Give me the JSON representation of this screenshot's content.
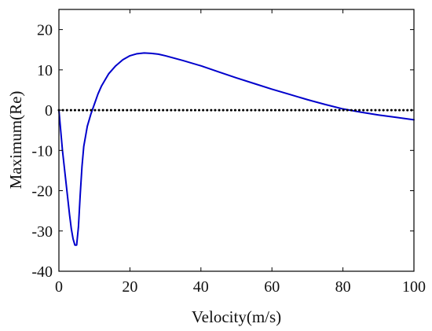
{
  "chart_data": {
    "type": "line",
    "title": "",
    "xlabel": "Velocity(m/s)",
    "ylabel": "Maximum(Re)",
    "xlim": [
      0,
      100
    ],
    "ylim": [
      -40,
      25
    ],
    "xticks": [
      0,
      20,
      40,
      60,
      80,
      100
    ],
    "yticks": [
      -40,
      -30,
      -20,
      -10,
      0,
      10,
      20
    ],
    "grid": false,
    "legend": "none",
    "box": true,
    "series": [
      {
        "style": "solid",
        "color": "#0000cc",
        "points": [
          [
            0,
            0
          ],
          [
            0.5,
            -5
          ],
          [
            1,
            -10
          ],
          [
            1.5,
            -14
          ],
          [
            2,
            -18
          ],
          [
            2.5,
            -22
          ],
          [
            3,
            -26
          ],
          [
            3.5,
            -29.5
          ],
          [
            4,
            -32
          ],
          [
            4.5,
            -33.5
          ],
          [
            5,
            -33.5
          ],
          [
            5.5,
            -29
          ],
          [
            6,
            -21
          ],
          [
            6.5,
            -14
          ],
          [
            7,
            -9
          ],
          [
            8,
            -4
          ],
          [
            9,
            -1
          ],
          [
            10,
            1.5
          ],
          [
            11,
            4
          ],
          [
            12,
            6
          ],
          [
            13,
            7.5
          ],
          [
            14,
            9
          ],
          [
            16,
            11
          ],
          [
            18,
            12.5
          ],
          [
            20,
            13.5
          ],
          [
            22,
            14
          ],
          [
            24,
            14.2
          ],
          [
            26,
            14.1
          ],
          [
            28,
            13.9
          ],
          [
            30,
            13.5
          ],
          [
            35,
            12.3
          ],
          [
            40,
            11.0
          ],
          [
            45,
            9.5
          ],
          [
            50,
            8.0
          ],
          [
            55,
            6.6
          ],
          [
            60,
            5.2
          ],
          [
            65,
            3.9
          ],
          [
            70,
            2.6
          ],
          [
            75,
            1.4
          ],
          [
            80,
            0.3
          ],
          [
            85,
            -0.5
          ],
          [
            90,
            -1.2
          ],
          [
            95,
            -1.8
          ],
          [
            100,
            -2.4
          ]
        ]
      },
      {
        "style": "dotted",
        "color": "#000000",
        "points": [
          [
            0,
            0
          ],
          [
            100,
            0
          ]
        ]
      }
    ]
  }
}
